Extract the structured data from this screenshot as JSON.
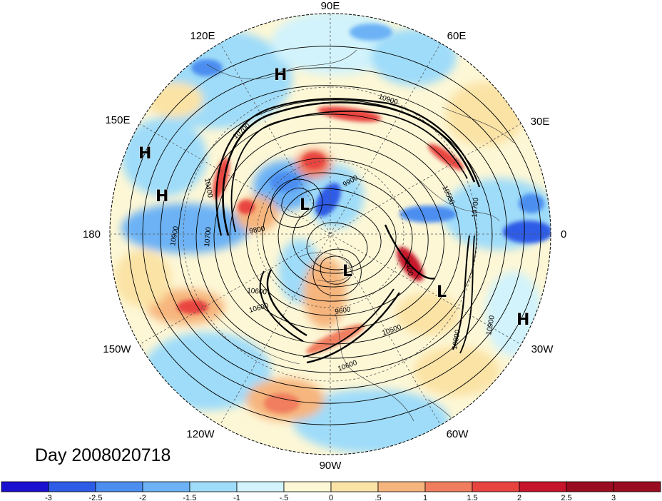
{
  "plot": {
    "day_label": "Day 2008020718",
    "longitude_labels": [
      "90E",
      "60E",
      "30E",
      "0",
      "30W",
      "60W",
      "90W",
      "120W",
      "150W",
      "180",
      "150E",
      "120E"
    ],
    "pressure_centers": [
      {
        "label": "H",
        "region": "eastern-siberia"
      },
      {
        "label": "H",
        "region": "western-pacific"
      },
      {
        "label": "H",
        "region": "central-pacific"
      },
      {
        "label": "L",
        "region": "arctic-siberian-side"
      },
      {
        "label": "L",
        "region": "canadian-archipelago"
      },
      {
        "label": "L",
        "region": "north-atlantic"
      },
      {
        "label": "H",
        "region": "subtropical-atlantic"
      }
    ],
    "contour_labels": [
      "10900",
      "10700",
      "10500",
      "10400",
      "9900",
      "9800",
      "10600",
      "10900",
      "10700",
      "10600",
      "9600",
      "10500",
      "10400",
      "10700",
      "10600",
      "10800",
      "10900"
    ],
    "contour_interval_m": 100
  },
  "colorbar": {
    "ticks": [
      "-3",
      "-2.5",
      "-2",
      "-1.5",
      "-1",
      "-.5",
      "0",
      ".5",
      "1",
      "1.5",
      "2",
      "2.5",
      "3"
    ],
    "colors": [
      "#1a10d0",
      "#2d5ce6",
      "#4b8ef0",
      "#6cb2f5",
      "#9fdcf9",
      "#d2f3fb",
      "#fdf7d6",
      "#fbe3a6",
      "#f6b57d",
      "#f07e5e",
      "#e8443f",
      "#c6142a",
      "#9a0c1f"
    ]
  },
  "colors": {
    "frame": "#000000",
    "grid": "#555555",
    "background": "#ffffff"
  }
}
